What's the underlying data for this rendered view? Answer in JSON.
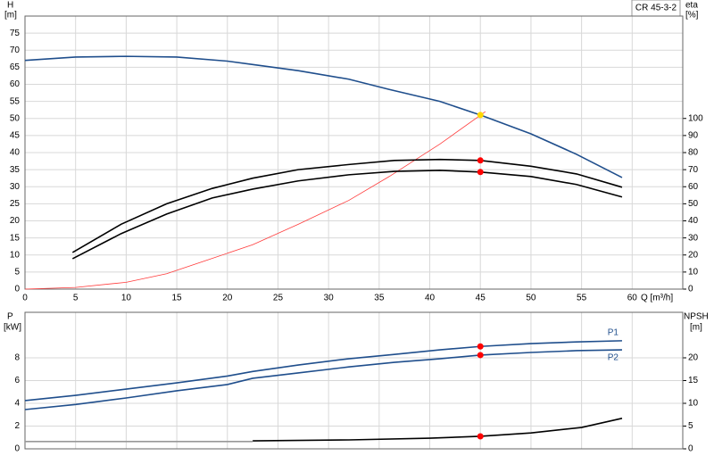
{
  "chart_data": [
    {
      "type": "line",
      "title": "CR 45-3-2",
      "x_label": "Q [m³/h]",
      "y_label": "H",
      "y_unit": "[m]",
      "y2_label": "eta",
      "y2_unit": "[%]",
      "xlim": [
        0,
        65
      ],
      "xticks": [
        0,
        5,
        10,
        15,
        20,
        25,
        30,
        35,
        40,
        45,
        50,
        55,
        60
      ],
      "ylim": [
        0,
        80
      ],
      "yticks": [
        0,
        5,
        10,
        15,
        20,
        25,
        30,
        35,
        40,
        45,
        50,
        55,
        60,
        65,
        70,
        75
      ],
      "y2lim": [
        0,
        160
      ],
      "y2ticks": [
        0,
        10,
        20,
        30,
        40,
        50,
        60,
        70,
        80,
        90,
        100
      ],
      "grid": true,
      "series": [
        {
          "color": "#1f4e8c",
          "x": [
            0,
            5,
            10,
            15,
            20,
            22.5,
            27,
            32,
            36,
            41,
            45,
            50,
            54.5,
            59
          ],
          "values": [
            67,
            68,
            68.2,
            68,
            66.8,
            65.8,
            64,
            61.5,
            58.5,
            55,
            51,
            45.5,
            39.5,
            32.7
          ]
        },
        {
          "color": "#ff3b3b",
          "axis": "y2",
          "x": [
            0,
            5,
            10,
            14,
            18,
            22.5,
            27,
            32,
            36,
            41,
            45.5
          ],
          "values": [
            0,
            1,
            4,
            9,
            17,
            26,
            38,
            52,
            66,
            85,
            104
          ]
        },
        {
          "color": "#000000",
          "axis": "y2",
          "x": [
            4.7,
            9.5,
            14,
            18.5,
            22.5,
            27,
            32,
            36.5,
            41,
            45,
            50,
            54.5,
            59
          ],
          "values": [
            21.5,
            38,
            50,
            59,
            65,
            70,
            73,
            75.4,
            76,
            75.4,
            72,
            67.5,
            59.7
          ]
        },
        {
          "color": "#000000",
          "axis": "y2",
          "x": [
            4.7,
            9.5,
            14,
            18.5,
            22.5,
            27,
            32,
            36.5,
            41,
            45,
            50,
            54.5,
            59
          ],
          "values": [
            17.8,
            32.5,
            44,
            53.4,
            58.6,
            63.4,
            67,
            69,
            69.6,
            68.6,
            66,
            61.3,
            54
          ]
        }
      ],
      "markers": [
        {
          "x": 45,
          "value": 51,
          "color": "#ffd700"
        },
        {
          "x": 45,
          "value": 75.4,
          "axis": "y2",
          "color": "#ff0000"
        },
        {
          "x": 45,
          "value": 68.6,
          "axis": "y2",
          "color": "#ff0000"
        }
      ]
    },
    {
      "type": "line",
      "y_label": "P",
      "y_unit": "[kW]",
      "y2_label": "NPSH",
      "y2_unit": "[m]",
      "xlim": [
        0,
        65
      ],
      "xticks": [
        0,
        5,
        10,
        15,
        20,
        25,
        30,
        35,
        40,
        45,
        50,
        55,
        60
      ],
      "ylim": [
        0,
        12
      ],
      "yticks": [
        0,
        2,
        4,
        6,
        8
      ],
      "y2lim": [
        0,
        30
      ],
      "y2ticks": [
        0,
        5,
        10,
        15,
        20
      ],
      "grid": true,
      "series": [
        {
          "name": "P1",
          "color": "#1f4e8c",
          "x": [
            0,
            5,
            10,
            15,
            20,
            22.5,
            27,
            32,
            36.5,
            41,
            45,
            50,
            54.5,
            59
          ],
          "values": [
            4.24,
            4.7,
            5.25,
            5.8,
            6.4,
            6.8,
            7.37,
            7.92,
            8.3,
            8.7,
            9.0,
            9.25,
            9.4,
            9.5
          ]
        },
        {
          "name": "P2",
          "color": "#1f4e8c",
          "x": [
            0,
            5,
            10,
            15,
            20,
            22.5,
            27,
            32,
            36.5,
            41,
            45,
            50,
            54.5,
            59
          ],
          "values": [
            3.45,
            3.9,
            4.47,
            5.1,
            5.65,
            6.2,
            6.67,
            7.2,
            7.6,
            7.92,
            8.24,
            8.47,
            8.63,
            8.7
          ]
        },
        {
          "color": "#000000",
          "axis": "y2",
          "x": [
            22.5,
            32,
            40,
            45,
            50,
            55,
            59
          ],
          "values": [
            1.76,
            1.96,
            2.35,
            2.75,
            3.5,
            4.7,
            6.7
          ]
        },
        {
          "color": "#999999",
          "axis": "y2",
          "x": [
            0,
            22.5
          ],
          "values": [
            1.6,
            1.6
          ]
        }
      ],
      "markers": [
        {
          "x": 45,
          "value": 9.0,
          "color": "#ff0000"
        },
        {
          "x": 45,
          "value": 8.24,
          "color": "#ff0000"
        },
        {
          "x": 45,
          "value": 2.75,
          "axis": "y2",
          "color": "#ff0000"
        }
      ]
    }
  ]
}
